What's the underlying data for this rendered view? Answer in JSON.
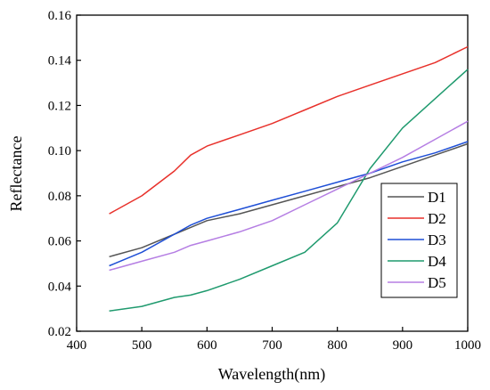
{
  "chart_data": {
    "type": "line",
    "title": "",
    "xlabel": "Wavelength(nm)",
    "ylabel": "Reflectance",
    "xlim": [
      400,
      1000
    ],
    "ylim": [
      0.02,
      0.16
    ],
    "xticks": [
      400,
      500,
      600,
      700,
      800,
      900,
      1000
    ],
    "yticks": [
      0.02,
      0.04,
      0.06,
      0.08,
      0.1,
      0.12,
      0.14,
      0.16
    ],
    "xtick_labels": [
      "400",
      "500",
      "600",
      "700",
      "800",
      "900",
      "1000"
    ],
    "ytick_labels": [
      "0.02",
      "0.04",
      "0.06",
      "0.08",
      "0.10",
      "0.12",
      "0.14",
      "0.16"
    ],
    "grid": false,
    "legend_position": "right",
    "x": [
      450,
      500,
      550,
      575,
      600,
      650,
      700,
      750,
      800,
      850,
      900,
      950,
      1000
    ],
    "series": [
      {
        "name": "D1",
        "color": "#555555",
        "values": [
          0.053,
          0.057,
          0.063,
          0.066,
          0.069,
          0.072,
          0.076,
          0.08,
          0.084,
          0.088,
          0.093,
          0.098,
          0.103
        ]
      },
      {
        "name": "D2",
        "color": "#e8312b",
        "values": [
          0.072,
          0.08,
          0.091,
          0.098,
          0.102,
          0.107,
          0.112,
          0.118,
          0.124,
          0.129,
          0.134,
          0.139,
          0.146
        ]
      },
      {
        "name": "D3",
        "color": "#1f4fd6",
        "values": [
          0.049,
          0.055,
          0.063,
          0.067,
          0.07,
          0.074,
          0.078,
          0.082,
          0.086,
          0.09,
          0.095,
          0.099,
          0.104
        ]
      },
      {
        "name": "D4",
        "color": "#1f9a6e",
        "values": [
          0.029,
          0.031,
          0.035,
          0.036,
          0.038,
          0.043,
          0.049,
          0.055,
          0.068,
          0.092,
          0.11,
          0.123,
          0.136
        ]
      },
      {
        "name": "D5",
        "color": "#b57ee3",
        "values": [
          0.047,
          0.051,
          0.055,
          0.058,
          0.06,
          0.064,
          0.069,
          0.076,
          0.083,
          0.09,
          0.097,
          0.105,
          0.113
        ]
      }
    ]
  }
}
